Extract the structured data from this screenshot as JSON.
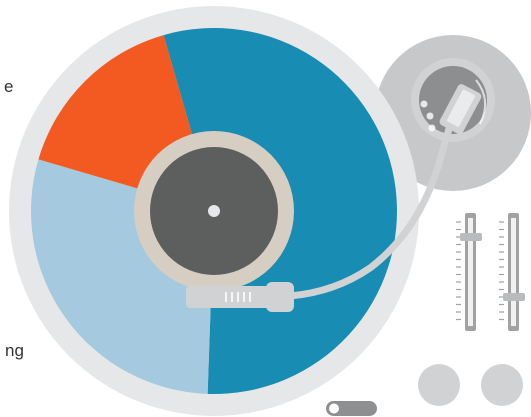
{
  "chart_data": {
    "type": "pie",
    "title": "",
    "categories": [
      "",
      "",
      ""
    ],
    "values": [
      55,
      29,
      16
    ],
    "colors": [
      "#188cb3",
      "#a5c9de",
      "#f25a22"
    ],
    "start_angle_deg": -16,
    "label_fragments": [
      "e",
      "ng"
    ]
  },
  "colors": {
    "platter_rim": "#e6e7e8",
    "record_center": "#5d5f5e",
    "label_ring": "#d6cec2",
    "spindle": "#e6e7e8",
    "tonearm": "#d1d2d4",
    "tonearm_base": "#c7c8ca",
    "tonearm_base_inner": "#8c8e90",
    "fader_track": "#a0a2a4",
    "fader_knob": "#b9bbbd",
    "button": "#d1d2d4",
    "switch_track": "#8d8f91"
  },
  "icons": [
    "turntable-platter-icon",
    "tonearm-icon",
    "fader-icon",
    "knob-icon",
    "switch-icon"
  ]
}
